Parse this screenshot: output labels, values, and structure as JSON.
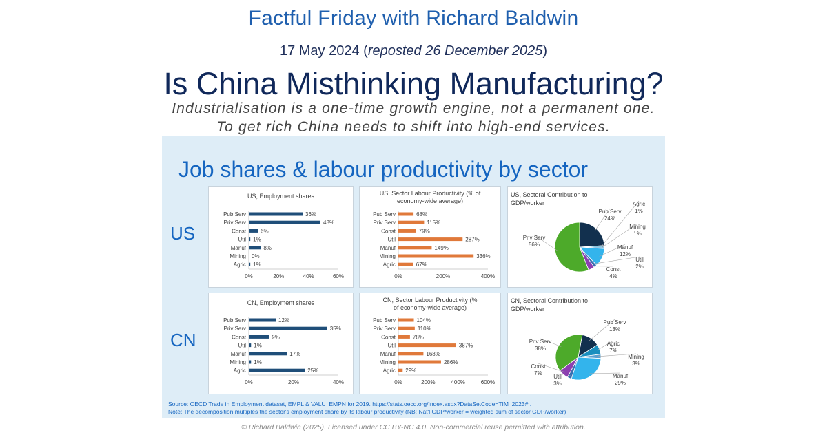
{
  "header": {
    "series": "Factful Friday with Richard Baldwin",
    "date": "17 May 2024",
    "reposted_open": "(",
    "reposted": "reposted 26 December 2025",
    "reposted_close": ")",
    "title": "Is China Misthinking Manufacturing?",
    "subtitle_line1": "Industrialisation is a one-time growth engine, not a permanent one.",
    "subtitle_line2": "To get rich China needs to shift into high-end services."
  },
  "panel": {
    "title": "Job shares & labour productivity by sector",
    "row_labels": {
      "us": "US",
      "cn": "CN"
    },
    "source_prefix": "Source: OECD Trade in Employment dataset, EMPL & VALU_EMPN for 2019. ",
    "source_link": "https://stats.oecd.org/Index.aspx?DataSetCode=TIM_2023#",
    "source_suffix": " .",
    "note": "Note: The decomposition multiples the sector's employment share by its labour productivity (NB: Nat'l GDP/worker = weighted sum of sector GDP/worker)"
  },
  "footer": "© Richard Baldwin (2025). Licensed under CC BY-NC 4.0. Non-commercial reuse permitted with attribution.",
  "colors": {
    "employment_bar": "#1f4e79",
    "productivity_bar": "#e0793a",
    "pub_serv": "#12304e",
    "agric": "#1a8fbf",
    "mining": "#5aa0d0",
    "manuf": "#33b4ec",
    "util": "#3a6fb0",
    "const": "#8c3fb0",
    "priv_serv": "#4daa2a"
  },
  "chart_data": [
    {
      "id": "us-employment",
      "type": "bar",
      "orientation": "horizontal",
      "title_lines": [
        "US, Employment shares"
      ],
      "categories": [
        "Pub Serv",
        "Priv Serv",
        "Const",
        "Util",
        "Manuf",
        "Mining",
        "Agric"
      ],
      "values": [
        36,
        48,
        6,
        1,
        8,
        0,
        1
      ],
      "labels": [
        "36%",
        "48%",
        "6%",
        "1%",
        "8%",
        "0%",
        "1%"
      ],
      "xlim": [
        0,
        60
      ],
      "ticks": [
        "0%",
        "20%",
        "40%",
        "60%"
      ]
    },
    {
      "id": "us-productivity",
      "type": "bar",
      "orientation": "horizontal",
      "title_lines": [
        "US, Sector Labour Productivity (% of",
        "economy-wide average)"
      ],
      "categories": [
        "Pub Serv",
        "Priv Serv",
        "Const",
        "Util",
        "Manuf",
        "Mining",
        "Agric"
      ],
      "values": [
        68,
        115,
        79,
        287,
        149,
        336,
        67
      ],
      "labels": [
        "68%",
        "115%",
        "79%",
        "287%",
        "149%",
        "336%",
        "67%"
      ],
      "xlim": [
        0,
        400
      ],
      "ticks": [
        "0%",
        "200%",
        "400%"
      ]
    },
    {
      "id": "us-contribution",
      "type": "pie",
      "title_lines": [
        "US, Sectoral Contribution to",
        "GDP/worker"
      ],
      "slices": [
        {
          "name": "Pub Serv",
          "value": 24,
          "label": "24%"
        },
        {
          "name": "Agric",
          "value": 1,
          "label": "1%"
        },
        {
          "name": "Mining",
          "value": 1,
          "label": "1%"
        },
        {
          "name": "Manuf",
          "value": 12,
          "label": "12%"
        },
        {
          "name": "Util",
          "value": 2,
          "label": "2%"
        },
        {
          "name": "Const",
          "value": 4,
          "label": "4%"
        },
        {
          "name": "Priv Serv",
          "value": 56,
          "label": "56%"
        }
      ]
    },
    {
      "id": "cn-employment",
      "type": "bar",
      "orientation": "horizontal",
      "title_lines": [
        "CN, Employment shares"
      ],
      "categories": [
        "Pub Serv",
        "Priv Serv",
        "Const",
        "Util",
        "Manuf",
        "Mining",
        "Agric"
      ],
      "values": [
        12,
        35,
        9,
        1,
        17,
        1,
        25
      ],
      "labels": [
        "12%",
        "35%",
        "9%",
        "1%",
        "17%",
        "1%",
        "25%"
      ],
      "xlim": [
        0,
        40
      ],
      "ticks": [
        "0%",
        "20%",
        "40%"
      ]
    },
    {
      "id": "cn-productivity",
      "type": "bar",
      "orientation": "horizontal",
      "title_lines": [
        "CN, Sector Labour Productivity (%",
        "of economy-wide average)"
      ],
      "categories": [
        "Pub Serv",
        "Priv Serv",
        "Const",
        "Util",
        "Manuf",
        "Mining",
        "Agric"
      ],
      "values": [
        104,
        110,
        78,
        387,
        168,
        286,
        29
      ],
      "labels": [
        "104%",
        "110%",
        "78%",
        "387%",
        "168%",
        "286%",
        "29%"
      ],
      "xlim": [
        0,
        600
      ],
      "ticks": [
        "0%",
        "200%",
        "400%",
        "600%"
      ]
    },
    {
      "id": "cn-contribution",
      "type": "pie",
      "title_lines": [
        "CN, Sectoral Contribution to",
        "GDP/worker"
      ],
      "slices": [
        {
          "name": "Pub Serv",
          "value": 13,
          "label": "13%"
        },
        {
          "name": "Agric",
          "value": 7,
          "label": "7%"
        },
        {
          "name": "Mining",
          "value": 3,
          "label": "3%"
        },
        {
          "name": "Manuf",
          "value": 29,
          "label": "29%"
        },
        {
          "name": "Util",
          "value": 3,
          "label": "3%"
        },
        {
          "name": "Const",
          "value": 7,
          "label": "7%"
        },
        {
          "name": "Priv Serv",
          "value": 38,
          "label": "38%"
        }
      ]
    }
  ]
}
